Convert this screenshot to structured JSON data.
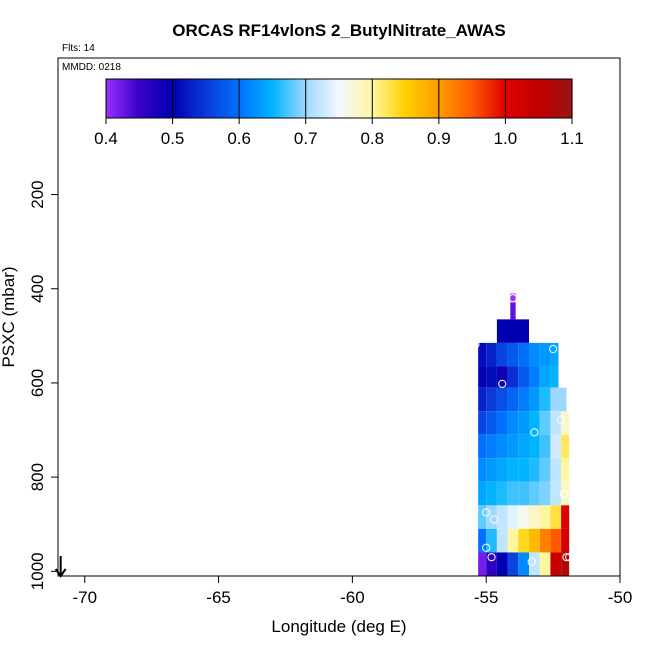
{
  "chart_data": {
    "type": "heatmap",
    "title": "ORCAS RF14vlonS 2_ButylNitrate_AWAS",
    "annotations": {
      "flights": "Flts: 14",
      "date": "MMDD: 0218"
    },
    "xlabel": "Longitude (deg E)",
    "ylabel": "PSXC (mbar)",
    "xlim": [
      -71,
      -50
    ],
    "ylim": [
      1010,
      -90
    ],
    "x_ticks": [
      -70,
      -65,
      -60,
      -55,
      -50
    ],
    "y_ticks": [
      200,
      400,
      600,
      800,
      1000
    ],
    "colorbar": {
      "range": [
        0.4,
        1.1
      ],
      "ticks": [
        0.4,
        0.5,
        0.6,
        0.7,
        0.8,
        0.9,
        1.0,
        1.1
      ],
      "tick_labels": [
        "0.4",
        "0.5",
        "0.6",
        "0.7",
        "0.8",
        "0.9",
        "1.0",
        "1.1"
      ],
      "stops": [
        {
          "v": 0.4,
          "color": "#9b30ff"
        },
        {
          "v": 0.45,
          "color": "#3a00c8"
        },
        {
          "v": 0.5,
          "color": "#0000b0"
        },
        {
          "v": 0.55,
          "color": "#0a3ad8"
        },
        {
          "v": 0.6,
          "color": "#0070ff"
        },
        {
          "v": 0.65,
          "color": "#00b4ff"
        },
        {
          "v": 0.7,
          "color": "#9fd8ff"
        },
        {
          "v": 0.75,
          "color": "#f2f8ff"
        },
        {
          "v": 0.8,
          "color": "#fff7a0"
        },
        {
          "v": 0.85,
          "color": "#ffd000"
        },
        {
          "v": 0.9,
          "color": "#ff9a00"
        },
        {
          "v": 0.95,
          "color": "#ff5a00"
        },
        {
          "v": 1.0,
          "color": "#e00000"
        },
        {
          "v": 1.05,
          "color": "#c00000"
        },
        {
          "v": 1.1,
          "color": "#9a1414"
        }
      ]
    },
    "grid_rows": [
      {
        "p0": 410,
        "p1": 430,
        "cells": [
          [
            -54.1,
            -53.9,
            0.4
          ]
        ]
      },
      {
        "p0": 430,
        "p1": 465,
        "cells": [
          [
            -54.1,
            -53.9,
            0.43
          ]
        ]
      },
      {
        "p0": 465,
        "p1": 515,
        "cells": [
          [
            -54.6,
            -53.4,
            0.5
          ]
        ]
      },
      {
        "p0": 515,
        "p1": 565,
        "cells": [
          [
            -55.3,
            -55.0,
            0.51
          ],
          [
            -55.0,
            -54.6,
            0.53
          ],
          [
            -54.6,
            -54.2,
            0.56
          ],
          [
            -54.2,
            -53.8,
            0.58
          ],
          [
            -53.8,
            -53.4,
            0.6
          ],
          [
            -53.4,
            -53.0,
            0.62
          ],
          [
            -53.0,
            -52.6,
            0.63
          ],
          [
            -52.6,
            -52.3,
            0.64
          ]
        ]
      },
      {
        "p0": 565,
        "p1": 610,
        "cells": [
          [
            -55.3,
            -55.0,
            0.5
          ],
          [
            -55.0,
            -54.6,
            0.51
          ],
          [
            -54.6,
            -54.2,
            0.49
          ],
          [
            -54.2,
            -53.8,
            0.54
          ],
          [
            -53.8,
            -53.4,
            0.58
          ],
          [
            -53.4,
            -53.0,
            0.61
          ],
          [
            -53.0,
            -52.6,
            0.64
          ],
          [
            -52.6,
            -52.3,
            0.65
          ]
        ]
      },
      {
        "p0": 610,
        "p1": 660,
        "cells": [
          [
            -55.3,
            -55.0,
            0.53
          ],
          [
            -55.0,
            -54.6,
            0.55
          ],
          [
            -54.6,
            -54.2,
            0.57
          ],
          [
            -54.2,
            -53.8,
            0.59
          ],
          [
            -53.8,
            -53.4,
            0.61
          ],
          [
            -53.4,
            -53.0,
            0.63
          ],
          [
            -53.0,
            -52.6,
            0.66
          ],
          [
            -52.6,
            -52.0,
            0.7
          ]
        ]
      },
      {
        "p0": 660,
        "p1": 710,
        "cells": [
          [
            -55.3,
            -55.0,
            0.56
          ],
          [
            -55.0,
            -54.6,
            0.58
          ],
          [
            -54.6,
            -54.2,
            0.6
          ],
          [
            -54.2,
            -53.8,
            0.62
          ],
          [
            -53.8,
            -53.4,
            0.63
          ],
          [
            -53.4,
            -53.0,
            0.65
          ],
          [
            -53.0,
            -52.6,
            0.68
          ],
          [
            -52.6,
            -52.2,
            0.72
          ],
          [
            -52.2,
            -51.9,
            0.78
          ]
        ]
      },
      {
        "p0": 710,
        "p1": 760,
        "cells": [
          [
            -55.3,
            -55.0,
            0.6
          ],
          [
            -55.0,
            -54.6,
            0.61
          ],
          [
            -54.6,
            -54.2,
            0.62
          ],
          [
            -54.2,
            -53.8,
            0.63
          ],
          [
            -53.8,
            -53.4,
            0.64
          ],
          [
            -53.4,
            -53.0,
            0.65
          ],
          [
            -53.0,
            -52.6,
            0.67
          ],
          [
            -52.6,
            -52.2,
            0.73
          ],
          [
            -52.2,
            -51.9,
            0.82
          ]
        ]
      },
      {
        "p0": 760,
        "p1": 810,
        "cells": [
          [
            -55.3,
            -55.0,
            0.62
          ],
          [
            -55.0,
            -54.6,
            0.63
          ],
          [
            -54.6,
            -54.2,
            0.64
          ],
          [
            -54.2,
            -53.8,
            0.65
          ],
          [
            -53.8,
            -53.4,
            0.65
          ],
          [
            -53.4,
            -53.0,
            0.66
          ],
          [
            -53.0,
            -52.6,
            0.68
          ],
          [
            -52.6,
            -52.2,
            0.72
          ],
          [
            -52.2,
            -51.9,
            0.8
          ]
        ]
      },
      {
        "p0": 810,
        "p1": 860,
        "cells": [
          [
            -55.3,
            -55.0,
            0.64
          ],
          [
            -55.0,
            -54.6,
            0.65
          ],
          [
            -54.6,
            -54.2,
            0.66
          ],
          [
            -54.2,
            -53.8,
            0.67
          ],
          [
            -53.8,
            -53.4,
            0.67
          ],
          [
            -53.4,
            -53.0,
            0.68
          ],
          [
            -53.0,
            -52.6,
            0.69
          ],
          [
            -52.6,
            -52.2,
            0.72
          ],
          [
            -52.2,
            -51.9,
            0.78
          ]
        ]
      },
      {
        "p0": 860,
        "p1": 910,
        "cells": [
          [
            -55.3,
            -55.0,
            0.68
          ],
          [
            -55.0,
            -54.6,
            0.7
          ],
          [
            -54.6,
            -54.2,
            0.72
          ],
          [
            -54.2,
            -53.8,
            0.74
          ],
          [
            -53.8,
            -53.4,
            0.76
          ],
          [
            -53.4,
            -53.0,
            0.78
          ],
          [
            -53.0,
            -52.6,
            0.8
          ],
          [
            -52.6,
            -52.2,
            0.83
          ],
          [
            -52.2,
            -51.9,
            1.0
          ]
        ]
      },
      {
        "p0": 910,
        "p1": 960,
        "cells": [
          [
            -55.3,
            -55.0,
            0.6
          ],
          [
            -55.0,
            -54.6,
            0.66
          ],
          [
            -54.6,
            -54.2,
            0.72
          ],
          [
            -54.2,
            -53.8,
            0.8
          ],
          [
            -53.8,
            -53.4,
            0.84
          ],
          [
            -53.4,
            -53.0,
            0.87
          ],
          [
            -53.0,
            -52.6,
            0.92
          ],
          [
            -52.6,
            -52.2,
            0.95
          ],
          [
            -52.2,
            -51.9,
            1.02
          ]
        ]
      },
      {
        "p0": 960,
        "p1": 1010,
        "cells": [
          [
            -55.3,
            -55.0,
            0.42
          ],
          [
            -55.0,
            -54.6,
            0.46
          ],
          [
            -54.6,
            -54.2,
            0.5
          ],
          [
            -54.2,
            -53.8,
            0.56
          ],
          [
            -53.8,
            -53.4,
            0.62
          ],
          [
            -53.4,
            -53.0,
            0.72
          ],
          [
            -53.0,
            -52.6,
            0.8
          ],
          [
            -52.6,
            -52.2,
            1.04
          ],
          [
            -52.2,
            -51.9,
            1.07
          ]
        ]
      }
    ],
    "samples": [
      {
        "lon": -54.0,
        "p": 420
      },
      {
        "lon": -55.4,
        "p": 518
      },
      {
        "lon": -52.5,
        "p": 528
      },
      {
        "lon": -54.4,
        "p": 602
      },
      {
        "lon": -52.2,
        "p": 678
      },
      {
        "lon": -53.2,
        "p": 705
      },
      {
        "lon": -52.1,
        "p": 835
      },
      {
        "lon": -55.0,
        "p": 875
      },
      {
        "lon": -54.7,
        "p": 890
      },
      {
        "lon": -55.0,
        "p": 950
      },
      {
        "lon": -54.8,
        "p": 970
      },
      {
        "lon": -53.3,
        "p": 980
      },
      {
        "lon": -52.0,
        "p": 970
      },
      {
        "lon": -51.9,
        "p": 970
      }
    ],
    "marker": {
      "type": "down-arrow",
      "lon": -70.9,
      "p": 1010
    }
  }
}
